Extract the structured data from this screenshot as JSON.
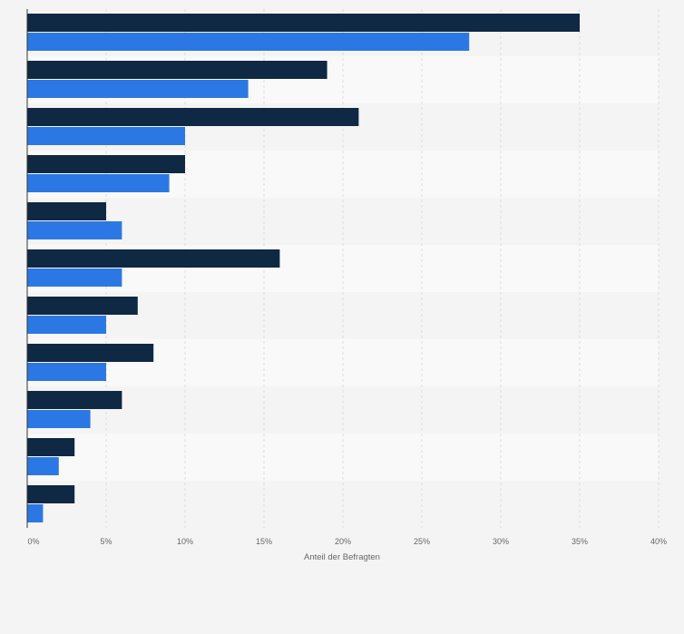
{
  "chart_data": {
    "type": "bar",
    "orientation": "horizontal",
    "categories": [
      "",
      "",
      "",
      "",
      "",
      "",
      "",
      "",
      "",
      "",
      ""
    ],
    "series": [
      {
        "values": [
          35,
          19,
          21,
          10,
          5,
          16,
          7,
          8,
          6,
          3,
          3
        ],
        "color": "#0f2843"
      },
      {
        "values": [
          28,
          14,
          10,
          9,
          6,
          6,
          5,
          5,
          4,
          2,
          1
        ],
        "color": "#2b78e4"
      }
    ],
    "xlabel": "Anteil der Befragten",
    "ylabel": "",
    "xlim": [
      0,
      40
    ],
    "x_ticks": [
      0,
      5,
      10,
      15,
      20,
      25,
      30,
      35,
      40
    ],
    "x_tick_labels": [
      "0%",
      "5%",
      "10%",
      "15%",
      "20%",
      "25%",
      "30%",
      "35%",
      "40%"
    ],
    "grid": true,
    "legend": "none"
  },
  "colors": {
    "background": "#f4f4f4",
    "band_dark": "#f4f4f4",
    "band_light": "#f9f9f9",
    "grid": "#dddddd",
    "axis": "#333333",
    "text": "#666666"
  }
}
